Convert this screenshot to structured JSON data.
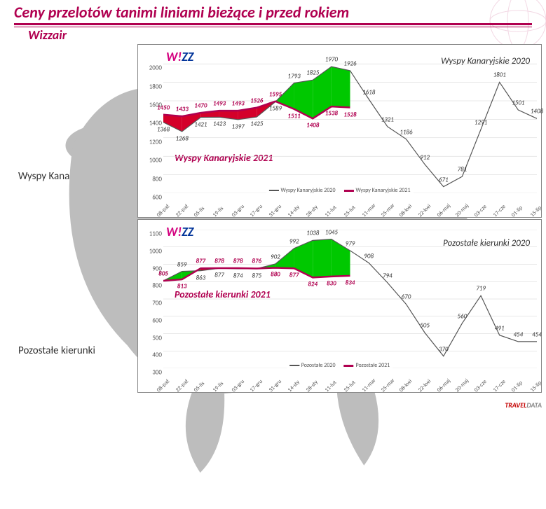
{
  "title": "Ceny przelotów tanimi liniami bieżące i przed rokiem",
  "subtitle": "Wizzair",
  "logo_text_w": "W!",
  "logo_text_zz": "ZZ",
  "left": {
    "region1": "Wyspy Kanaryjskie",
    "region2": "Pozostałe kierunki"
  },
  "x_categories": [
    "08-paź",
    "22-paź",
    "05-lis",
    "19-lis",
    "03-gru",
    "17-gru",
    "31-gru",
    "14-sty",
    "28-sty",
    "11-lut",
    "25-lut",
    "11-mar",
    "25-mar",
    "08-kwi",
    "22-kwi",
    "06-maj",
    "20-maj",
    "03-cze",
    "17-cze",
    "01-lip",
    "15-lip"
  ],
  "chart1": {
    "type": "line-area",
    "year_label": "Wyspy Kanaryjskie 2020",
    "inner_label": "Wyspy Kanaryjskie 2021",
    "ylim": [
      600,
      2100
    ],
    "ytick_step": 200,
    "legend": [
      "Wyspy Kanaryjskie 2020",
      "Wyspy Kanaryjskie 2021"
    ],
    "series_2020": {
      "color": "#555555",
      "values": [
        1368,
        1268,
        1421,
        1423,
        1397,
        1425,
        1589,
        1793,
        1825,
        1970,
        1926,
        1618,
        1321,
        1186,
        912,
        671,
        781,
        1291,
        1801,
        1501,
        1408
      ]
    },
    "series_2021": {
      "color": "#b00050",
      "values": [
        1450,
        1433,
        1470,
        1493,
        1493,
        1526,
        1595,
        1511,
        1408,
        1538,
        1528
      ]
    },
    "fill_between_colors": {
      "above": "#00c800",
      "below": "#d4002a"
    }
  },
  "chart2": {
    "type": "line-area",
    "year_label": "Pozostałe kierunki 2020",
    "inner_label": "Pozostałe kierunki 2021",
    "ylim": [
      300,
      1100
    ],
    "ytick_step": 100,
    "legend": [
      "Pozostałe 2020",
      "Pozostałe 2021"
    ],
    "series_2020": {
      "color": "#555555",
      "values": [
        805,
        859,
        863,
        877,
        874,
        875,
        902,
        992,
        1038,
        1045,
        979,
        908,
        794,
        670,
        505,
        370,
        560,
        719,
        491,
        454,
        454
      ]
    },
    "series_2021": {
      "color": "#b00050",
      "values": [
        805,
        813,
        877,
        878,
        878,
        876,
        880,
        877,
        824,
        830,
        834
      ]
    },
    "fill_between_colors": {
      "above": "#00c800",
      "below": "#d4002a"
    }
  },
  "colors": {
    "accent": "#b00050",
    "grid": "#d0d0d0",
    "fill_above": "#00c800",
    "fill_below": "#d4002a"
  },
  "watermark": {
    "t": "TRAVEL",
    "d": "DATA"
  }
}
